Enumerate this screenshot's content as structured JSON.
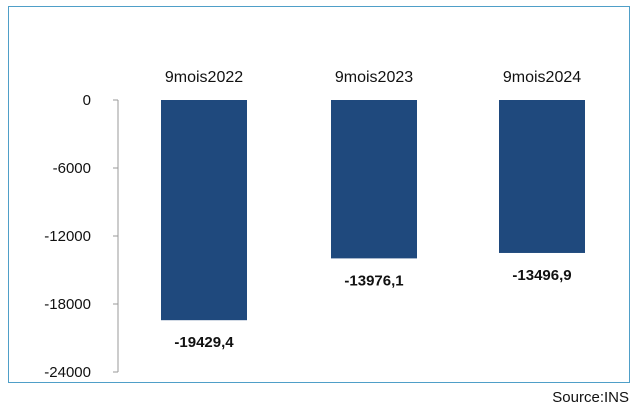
{
  "chart_data": {
    "type": "bar",
    "categories": [
      "9mois2022",
      "9mois2023",
      "9mois2024"
    ],
    "values": [
      -19429.4,
      -13976.1,
      -13496.9
    ],
    "value_labels": [
      "-19429,4",
      "-13976,1",
      "-13496,9"
    ],
    "title": "",
    "xlabel": "",
    "ylabel": "",
    "ylim": [
      -24000,
      0
    ],
    "yticks": [
      0,
      -6000,
      -12000,
      -18000,
      -24000
    ],
    "ytick_labels": [
      "0",
      "-6000",
      "-12000",
      "-18000",
      "-24000"
    ],
    "grid": false,
    "legend": "none",
    "category_label_position": "top",
    "bar_color": "#1f497d",
    "axis_color": "#9a9a9a",
    "frame_color": "#4f9fc8"
  },
  "source": "Source:INS"
}
